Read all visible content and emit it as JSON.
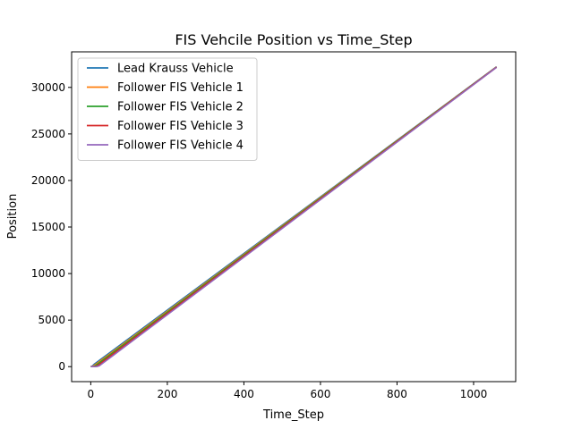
{
  "chart_data": {
    "type": "line",
    "title": "FIS Vehcile Position vs Time_Step",
    "xlabel": "Time_Step",
    "ylabel": "Position",
    "xlim": [
      -50,
      1110
    ],
    "ylim": [
      -1610,
      33820
    ],
    "xticks": [
      0,
      200,
      400,
      600,
      800,
      1000
    ],
    "yticks": [
      0,
      5000,
      10000,
      15000,
      20000,
      25000,
      30000
    ],
    "grid": false,
    "legend_position": "upper left",
    "series": [
      {
        "name": "Lead Krauss Vehicle",
        "color": "#1f77b4",
        "x": [
          0,
          4,
          10,
          1060
        ],
        "y": [
          0,
          60,
          300,
          32220
        ]
      },
      {
        "name": "Follower FIS Vehicle 1",
        "color": "#ff7f0e",
        "x": [
          0,
          5,
          12,
          1060
        ],
        "y": [
          0,
          30,
          220,
          32200
        ]
      },
      {
        "name": "Follower FIS Vehicle 2",
        "color": "#2ca02c",
        "x": [
          0,
          8,
          14,
          1060
        ],
        "y": [
          0,
          20,
          160,
          32180
        ]
      },
      {
        "name": "Follower FIS Vehicle 3",
        "color": "#d62728",
        "x": [
          0,
          12,
          18,
          1060
        ],
        "y": [
          0,
          15,
          120,
          32170
        ]
      },
      {
        "name": "Follower FIS Vehicle 4",
        "color": "#9467bd",
        "x": [
          0,
          16,
          22,
          1060
        ],
        "y": [
          0,
          10,
          80,
          32150
        ]
      }
    ]
  }
}
